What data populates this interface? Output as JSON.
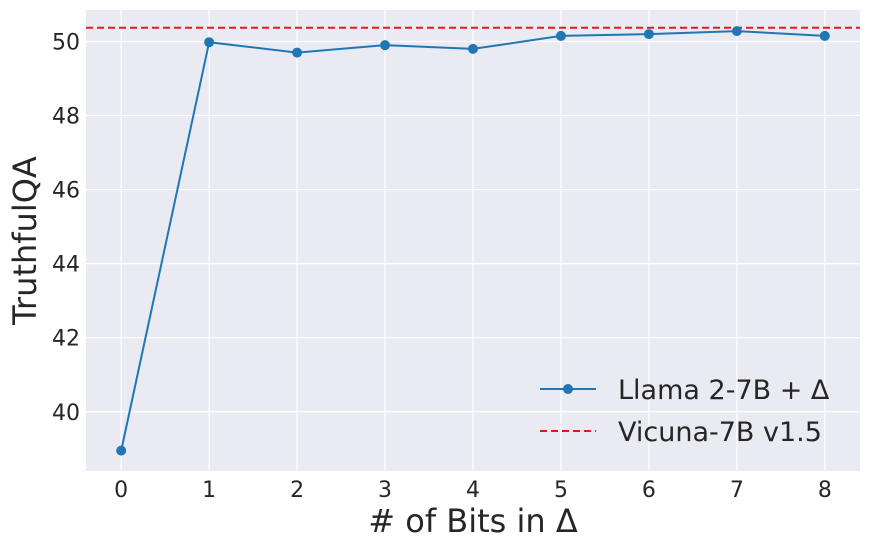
{
  "chart_data": {
    "type": "line",
    "xlabel": "# of Bits in Δ",
    "ylabel": "TruthfulQA",
    "x": [
      0,
      1,
      2,
      3,
      4,
      5,
      6,
      7,
      8
    ],
    "xlim": [
      -0.4,
      8.4
    ],
    "ylim": [
      38.4,
      50.85
    ],
    "xticks": [
      0,
      1,
      2,
      3,
      4,
      5,
      6,
      7,
      8
    ],
    "yticks": [
      40,
      42,
      44,
      46,
      48,
      50
    ],
    "grid": true,
    "legend_position": "bottom-right",
    "series": [
      {
        "name": "Llama 2-7B + Δ",
        "style": "solid-line-with-markers",
        "color": "#1f77b4",
        "values": [
          38.95,
          49.98,
          49.7,
          49.9,
          49.8,
          50.15,
          50.2,
          50.28,
          50.15
        ]
      }
    ],
    "reference_lines": [
      {
        "name": "Vicuna-7B v1.5",
        "style": "dashed",
        "color": "#e31a1c",
        "y": 50.37
      }
    ],
    "colors": {
      "plot_background": "#eaeaf2",
      "grid": "#ffffff",
      "text": "#262626"
    }
  }
}
